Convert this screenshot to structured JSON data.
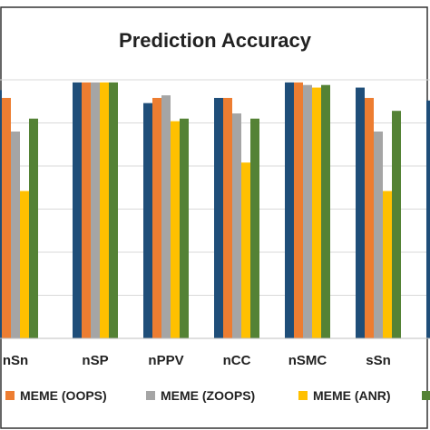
{
  "chart_data": {
    "type": "bar",
    "title": "Prediction Accuracy",
    "xlabel": "",
    "ylabel": "",
    "ylim": [
      0,
      1.0
    ],
    "grid": true,
    "legend_position": "bottom",
    "categories": [
      "nSn",
      "nSP",
      "nPPV",
      "nCC",
      "nSMC",
      "sSn",
      ""
    ],
    "series": [
      {
        "name": "",
        "color": "#1F4E79",
        "values": [
          0.96,
          0.99,
          0.91,
          0.93,
          0.99,
          0.97,
          0.92
        ]
      },
      {
        "name": "MEME (OOPS)",
        "color": "#ED7D31",
        "values": [
          0.93,
          0.99,
          0.93,
          0.93,
          0.99,
          0.93,
          null
        ]
      },
      {
        "name": "MEME (ZOOPS)",
        "color": "#A5A5A5",
        "values": [
          0.8,
          0.99,
          0.94,
          0.87,
          0.98,
          0.8,
          null
        ]
      },
      {
        "name": "MEME (ANR)",
        "color": "#FFC000",
        "values": [
          0.57,
          0.99,
          0.84,
          0.68,
          0.97,
          0.57,
          null
        ]
      },
      {
        "name": "",
        "color": "#548235",
        "values": [
          0.85,
          0.99,
          0.85,
          0.85,
          0.98,
          0.88,
          null
        ]
      }
    ]
  }
}
